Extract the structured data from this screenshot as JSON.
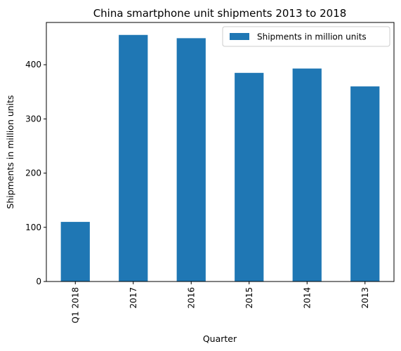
{
  "chart_data": {
    "type": "bar",
    "title": "China smartphone unit shipments 2013 to 2018",
    "xlabel": "Quarter",
    "ylabel": "Shipments in million units",
    "categories": [
      "Q1 2018",
      "2017",
      "2016",
      "2015",
      "2014",
      "2013"
    ],
    "series": [
      {
        "name": "Shipments in million units",
        "values": [
          110,
          455,
          449,
          385,
          393,
          360
        ]
      }
    ],
    "ylim": [
      0,
      478
    ],
    "yticks": [
      0,
      100,
      200,
      300,
      400
    ],
    "grid": false,
    "legend": "top-right",
    "bar_color": "#1f77b4"
  }
}
